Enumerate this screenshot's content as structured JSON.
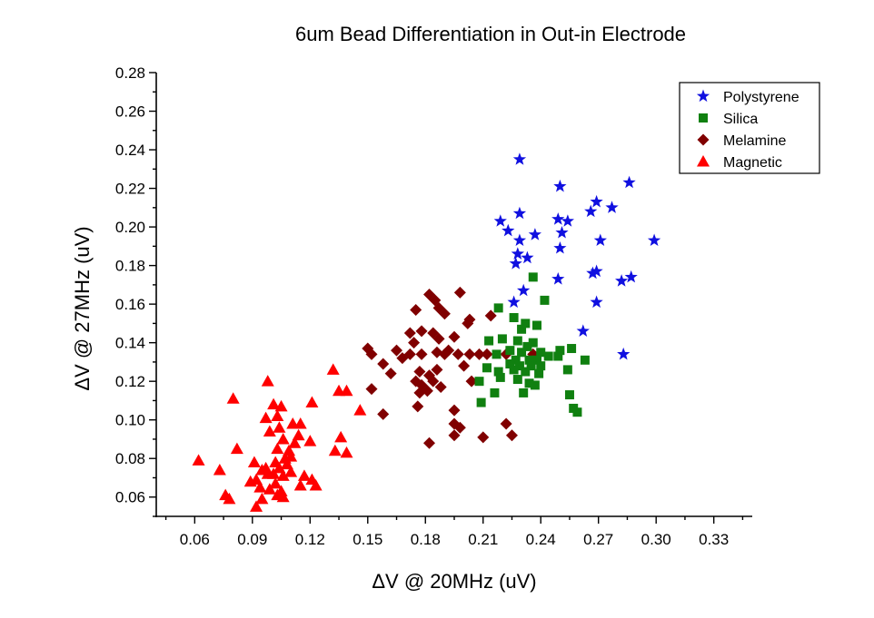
{
  "chart_data": {
    "type": "scatter",
    "title": "6um Bead Differentiation in Out-in Electrode",
    "xlabel": "ΔV @ 20MHz (uV)",
    "ylabel": "ΔV @ 27MHz (uV)",
    "xlim": [
      0.04,
      0.35
    ],
    "ylim": [
      0.05,
      0.28
    ],
    "xticks": [
      "0.06",
      "0.09",
      "0.12",
      "0.15",
      "0.18",
      "0.21",
      "0.24",
      "0.27",
      "0.30",
      "0.33"
    ],
    "yticks": [
      "0.06",
      "0.08",
      "0.10",
      "0.12",
      "0.14",
      "0.16",
      "0.18",
      "0.20",
      "0.22",
      "0.24",
      "0.26",
      "0.28"
    ],
    "grid": false,
    "legend_position": "top-right",
    "series": [
      {
        "name": "Polystyrene",
        "marker": "star",
        "color": "#1010e0",
        "points": [
          [
            0.229,
            0.235
          ],
          [
            0.25,
            0.221
          ],
          [
            0.286,
            0.223
          ],
          [
            0.269,
            0.213
          ],
          [
            0.277,
            0.21
          ],
          [
            0.266,
            0.208
          ],
          [
            0.229,
            0.207
          ],
          [
            0.219,
            0.203
          ],
          [
            0.249,
            0.204
          ],
          [
            0.254,
            0.203
          ],
          [
            0.223,
            0.198
          ],
          [
            0.237,
            0.196
          ],
          [
            0.251,
            0.197
          ],
          [
            0.229,
            0.193
          ],
          [
            0.271,
            0.193
          ],
          [
            0.299,
            0.193
          ],
          [
            0.25,
            0.189
          ],
          [
            0.228,
            0.186
          ],
          [
            0.233,
            0.184
          ],
          [
            0.227,
            0.181
          ],
          [
            0.269,
            0.177
          ],
          [
            0.267,
            0.176
          ],
          [
            0.287,
            0.174
          ],
          [
            0.249,
            0.173
          ],
          [
            0.282,
            0.172
          ],
          [
            0.231,
            0.167
          ],
          [
            0.226,
            0.161
          ],
          [
            0.269,
            0.161
          ],
          [
            0.262,
            0.146
          ],
          [
            0.283,
            0.134
          ]
        ]
      },
      {
        "name": "Silica",
        "marker": "square",
        "color": "#108010",
        "points": [
          [
            0.236,
            0.174
          ],
          [
            0.242,
            0.162
          ],
          [
            0.218,
            0.158
          ],
          [
            0.226,
            0.153
          ],
          [
            0.232,
            0.15
          ],
          [
            0.238,
            0.149
          ],
          [
            0.23,
            0.147
          ],
          [
            0.22,
            0.142
          ],
          [
            0.228,
            0.141
          ],
          [
            0.213,
            0.141
          ],
          [
            0.236,
            0.14
          ],
          [
            0.233,
            0.138
          ],
          [
            0.224,
            0.136
          ],
          [
            0.23,
            0.135
          ],
          [
            0.24,
            0.135
          ],
          [
            0.25,
            0.136
          ],
          [
            0.256,
            0.137
          ],
          [
            0.217,
            0.134
          ],
          [
            0.227,
            0.131
          ],
          [
            0.234,
            0.131
          ],
          [
            0.238,
            0.131
          ],
          [
            0.244,
            0.133
          ],
          [
            0.249,
            0.133
          ],
          [
            0.263,
            0.131
          ],
          [
            0.224,
            0.129
          ],
          [
            0.229,
            0.128
          ],
          [
            0.235,
            0.128
          ],
          [
            0.24,
            0.128
          ],
          [
            0.212,
            0.127
          ],
          [
            0.218,
            0.125
          ],
          [
            0.226,
            0.126
          ],
          [
            0.232,
            0.125
          ],
          [
            0.239,
            0.124
          ],
          [
            0.254,
            0.126
          ],
          [
            0.208,
            0.12
          ],
          [
            0.219,
            0.122
          ],
          [
            0.228,
            0.121
          ],
          [
            0.234,
            0.119
          ],
          [
            0.237,
            0.118
          ],
          [
            0.216,
            0.114
          ],
          [
            0.231,
            0.114
          ],
          [
            0.255,
            0.113
          ],
          [
            0.209,
            0.109
          ],
          [
            0.257,
            0.106
          ],
          [
            0.259,
            0.104
          ]
        ]
      },
      {
        "name": "Melamine",
        "marker": "diamond",
        "color": "#800000",
        "points": [
          [
            0.182,
            0.165
          ],
          [
            0.198,
            0.166
          ],
          [
            0.185,
            0.162
          ],
          [
            0.187,
            0.158
          ],
          [
            0.175,
            0.157
          ],
          [
            0.19,
            0.155
          ],
          [
            0.214,
            0.154
          ],
          [
            0.203,
            0.152
          ],
          [
            0.202,
            0.15
          ],
          [
            0.172,
            0.145
          ],
          [
            0.178,
            0.146
          ],
          [
            0.184,
            0.145
          ],
          [
            0.195,
            0.143
          ],
          [
            0.187,
            0.142
          ],
          [
            0.174,
            0.14
          ],
          [
            0.15,
            0.137
          ],
          [
            0.165,
            0.136
          ],
          [
            0.186,
            0.135
          ],
          [
            0.192,
            0.136
          ],
          [
            0.152,
            0.134
          ],
          [
            0.172,
            0.134
          ],
          [
            0.178,
            0.134
          ],
          [
            0.19,
            0.134
          ],
          [
            0.197,
            0.134
          ],
          [
            0.203,
            0.134
          ],
          [
            0.208,
            0.134
          ],
          [
            0.212,
            0.134
          ],
          [
            0.222,
            0.134
          ],
          [
            0.236,
            0.134
          ],
          [
            0.168,
            0.132
          ],
          [
            0.158,
            0.129
          ],
          [
            0.2,
            0.128
          ],
          [
            0.186,
            0.126
          ],
          [
            0.177,
            0.125
          ],
          [
            0.162,
            0.124
          ],
          [
            0.182,
            0.123
          ],
          [
            0.175,
            0.12
          ],
          [
            0.184,
            0.12
          ],
          [
            0.204,
            0.12
          ],
          [
            0.178,
            0.118
          ],
          [
            0.188,
            0.117
          ],
          [
            0.152,
            0.116
          ],
          [
            0.181,
            0.115
          ],
          [
            0.177,
            0.114
          ],
          [
            0.176,
            0.107
          ],
          [
            0.195,
            0.105
          ],
          [
            0.158,
            0.103
          ],
          [
            0.195,
            0.098
          ],
          [
            0.222,
            0.098
          ],
          [
            0.198,
            0.096
          ],
          [
            0.195,
            0.092
          ],
          [
            0.225,
            0.092
          ],
          [
            0.21,
            0.091
          ],
          [
            0.182,
            0.088
          ]
        ]
      },
      {
        "name": "Magnetic",
        "marker": "triangle",
        "color": "#ff0000",
        "points": [
          [
            0.132,
            0.126
          ],
          [
            0.098,
            0.12
          ],
          [
            0.135,
            0.115
          ],
          [
            0.139,
            0.115
          ],
          [
            0.08,
            0.111
          ],
          [
            0.121,
            0.109
          ],
          [
            0.101,
            0.108
          ],
          [
            0.105,
            0.107
          ],
          [
            0.103,
            0.102
          ],
          [
            0.097,
            0.101
          ],
          [
            0.146,
            0.105
          ],
          [
            0.111,
            0.098
          ],
          [
            0.115,
            0.098
          ],
          [
            0.104,
            0.096
          ],
          [
            0.099,
            0.094
          ],
          [
            0.114,
            0.092
          ],
          [
            0.106,
            0.09
          ],
          [
            0.136,
            0.091
          ],
          [
            0.12,
            0.089
          ],
          [
            0.112,
            0.088
          ],
          [
            0.082,
            0.085
          ],
          [
            0.103,
            0.085
          ],
          [
            0.109,
            0.084
          ],
          [
            0.133,
            0.084
          ],
          [
            0.139,
            0.083
          ],
          [
            0.11,
            0.081
          ],
          [
            0.107,
            0.08
          ],
          [
            0.062,
            0.079
          ],
          [
            0.091,
            0.078
          ],
          [
            0.102,
            0.078
          ],
          [
            0.108,
            0.077
          ],
          [
            0.097,
            0.075
          ],
          [
            0.104,
            0.075
          ],
          [
            0.095,
            0.074
          ],
          [
            0.073,
            0.074
          ],
          [
            0.11,
            0.073
          ],
          [
            0.101,
            0.072
          ],
          [
            0.098,
            0.072
          ],
          [
            0.117,
            0.071
          ],
          [
            0.106,
            0.071
          ],
          [
            0.092,
            0.069
          ],
          [
            0.121,
            0.069
          ],
          [
            0.089,
            0.068
          ],
          [
            0.102,
            0.067
          ],
          [
            0.115,
            0.066
          ],
          [
            0.123,
            0.066
          ],
          [
            0.094,
            0.065
          ],
          [
            0.099,
            0.064
          ],
          [
            0.105,
            0.063
          ],
          [
            0.103,
            0.061
          ],
          [
            0.076,
            0.061
          ],
          [
            0.106,
            0.06
          ],
          [
            0.078,
            0.059
          ],
          [
            0.095,
            0.059
          ],
          [
            0.092,
            0.055
          ]
        ]
      }
    ]
  }
}
